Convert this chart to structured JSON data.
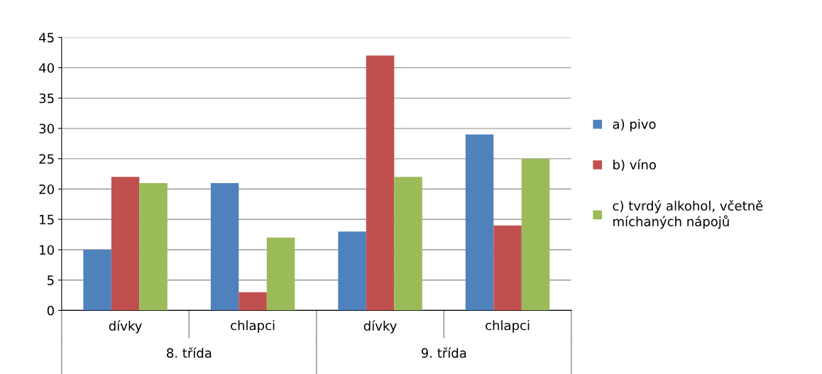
{
  "chart_data": {
    "type": "bar",
    "categories": [
      "dívky",
      "chlapci",
      "dívky",
      "chlapci"
    ],
    "series": [
      {
        "name": "a) pivo",
        "color": "#4f81bd",
        "values": [
          10,
          21,
          13,
          29
        ]
      },
      {
        "name": "b) víno",
        "color": "#c0504d",
        "values": [
          22,
          3,
          42,
          14
        ]
      },
      {
        "name": "c) tvrdý alkohol, včetně\nmíchaných nápojů",
        "color": "#9bbb59",
        "values": [
          21,
          12,
          22,
          25
        ]
      }
    ],
    "annotations": [
      "8. třída",
      "9. třída"
    ],
    "ylim": [
      0,
      45
    ],
    "yticks": [
      0,
      5,
      10,
      15,
      20,
      25,
      30,
      35,
      40,
      45
    ],
    "grid": "y",
    "legend": "right"
  }
}
